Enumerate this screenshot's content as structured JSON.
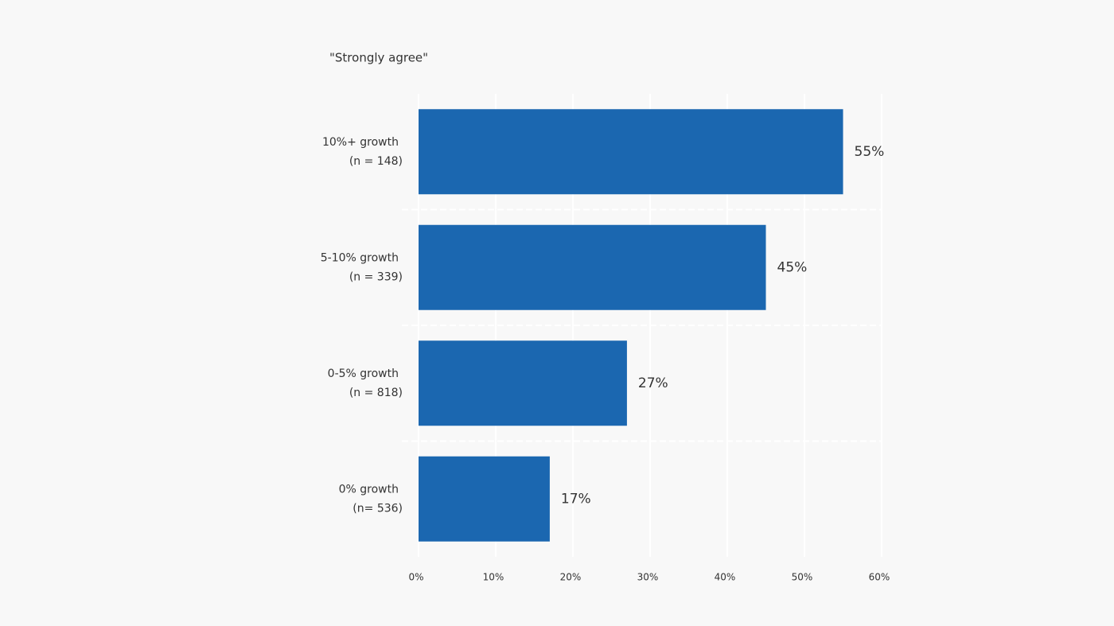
{
  "chart_data": {
    "type": "hbar",
    "title": "\"Strongly agree\"",
    "categories": [
      "10%+ growth",
      "5-10% growth",
      "0-5% growth",
      "0% growth"
    ],
    "category_subtitles": [
      "(n = 148)",
      "(n = 339)",
      "(n = 818)",
      "(n= 536)"
    ],
    "values": [
      55,
      45,
      27,
      17
    ],
    "value_labels": [
      "55%",
      "45%",
      "27%",
      "17%"
    ],
    "color": "#1b67b0",
    "xlim": [
      0,
      60
    ],
    "xticks": [
      {
        "value": 0,
        "label": "0%"
      },
      {
        "value": 10,
        "label": "10%"
      },
      {
        "value": 20,
        "label": "20%"
      },
      {
        "value": 30,
        "label": "30%"
      },
      {
        "value": 40,
        "label": "40%"
      },
      {
        "value": 50,
        "label": "50%"
      },
      {
        "value": 60,
        "label": "60%"
      }
    ],
    "grid": true
  }
}
